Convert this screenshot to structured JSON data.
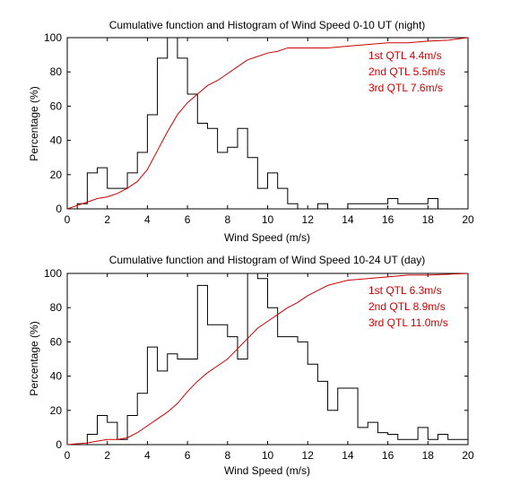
{
  "chart_data": [
    {
      "type": "line",
      "title": "Cumulative function and Histogram of Wind Speed 0-10 UT (night)",
      "xlabel": "Wind Speed (m/s)",
      "ylabel": "Percentage (%)",
      "xlim": [
        0,
        20
      ],
      "ylim": [
        0,
        100
      ],
      "xticks": [
        "0",
        "2",
        "4",
        "6",
        "8",
        "10",
        "12",
        "14",
        "16",
        "18",
        "20"
      ],
      "yticks": [
        "0",
        "20",
        "40",
        "60",
        "80",
        "100"
      ],
      "grid": false,
      "colors": {
        "histogram": "#000000",
        "cumulative": "#cc0000",
        "annotation": "#cc0000"
      },
      "annotations": [
        "1st QTL 4.4m/s",
        "2nd QTL 5.5m/s",
        "3rd QTL 7.6m/s"
      ],
      "series": [
        {
          "style": "histogram-step",
          "x": [
            0,
            0.5,
            1,
            1.5,
            2,
            2.5,
            3,
            3.5,
            4,
            4.5,
            5,
            5.5,
            6,
            6.5,
            7,
            7.5,
            8,
            8.5,
            9,
            9.5,
            10,
            10.5,
            11,
            11.5,
            12,
            12.5,
            13,
            13.5,
            14,
            14.5,
            15,
            15.5,
            16,
            16.5,
            17,
            17.5,
            18,
            18.5,
            19,
            19.5
          ],
          "values": [
            0,
            3,
            21,
            24,
            12,
            12,
            21,
            33,
            55,
            88,
            100,
            88,
            67,
            50,
            47,
            33,
            36,
            47,
            30,
            12,
            21,
            12,
            3,
            0,
            0,
            3,
            0,
            0,
            3,
            3,
            3,
            3,
            6,
            3,
            3,
            3,
            6,
            0,
            0,
            0
          ]
        },
        {
          "style": "cumulative-line",
          "x": [
            0,
            0.5,
            1,
            1.5,
            2,
            2.5,
            3,
            3.5,
            4,
            4.5,
            5,
            5.5,
            6,
            6.5,
            7,
            7.5,
            8,
            8.5,
            9,
            9.5,
            10,
            10.5,
            11,
            12,
            13,
            14,
            15,
            16,
            17,
            18,
            19,
            20
          ],
          "values": [
            0,
            2,
            4,
            6,
            7,
            9,
            12,
            16,
            23,
            34,
            45,
            55,
            62,
            67,
            72,
            75,
            79,
            83,
            87,
            89,
            91,
            92,
            94,
            94,
            94,
            95,
            96,
            97,
            97,
            98,
            98.5,
            100
          ]
        }
      ]
    },
    {
      "type": "line",
      "title": "Cumulative function and Histogram of Wind Speed 10-24 UT (day)",
      "xlabel": "Wind Speed (m/s)",
      "ylabel": "Percentage (%)",
      "xlim": [
        0,
        20
      ],
      "ylim": [
        0,
        100
      ],
      "xticks": [
        "0",
        "2",
        "4",
        "6",
        "8",
        "10",
        "12",
        "14",
        "16",
        "18",
        "20"
      ],
      "yticks": [
        "0",
        "20",
        "40",
        "60",
        "80",
        "100"
      ],
      "grid": false,
      "colors": {
        "histogram": "#000000",
        "cumulative": "#cc0000",
        "annotation": "#cc0000"
      },
      "annotations": [
        "1st QTL 6.3m/s",
        "2nd QTL 8.9m/s",
        "3rd QTL 11.0m/s"
      ],
      "series": [
        {
          "style": "histogram-step",
          "x": [
            1,
            1.5,
            2,
            2.5,
            3,
            3.5,
            4,
            4.5,
            5,
            5.5,
            6,
            6.5,
            7,
            7.5,
            8,
            8.5,
            9,
            9.5,
            10,
            10.5,
            11,
            11.5,
            12,
            12.5,
            13,
            13.5,
            14,
            14.5,
            15,
            15.5,
            16,
            16.5,
            17,
            17.5,
            18,
            18.5,
            19,
            19.5
          ],
          "values": [
            6,
            17,
            13,
            3,
            17,
            30,
            57,
            43,
            53,
            50,
            50,
            93,
            70,
            70,
            63,
            50,
            100,
            97,
            80,
            63,
            63,
            60,
            47,
            37,
            20,
            33,
            33,
            10,
            13,
            7,
            6,
            3,
            3,
            10,
            3,
            6,
            3,
            3
          ]
        },
        {
          "style": "cumulative-line",
          "x": [
            0,
            0.5,
            1,
            1.5,
            2,
            2.5,
            3,
            3.5,
            4,
            4.5,
            5,
            5.5,
            6,
            6.5,
            7,
            7.5,
            8,
            8.5,
            9,
            9.5,
            10,
            10.5,
            11,
            11.5,
            12,
            12.5,
            13,
            14,
            15,
            16,
            17,
            18,
            19,
            20
          ],
          "values": [
            0,
            0.5,
            1,
            2,
            3,
            3,
            4,
            7,
            11,
            15,
            19,
            24,
            31,
            37,
            42,
            46,
            50,
            56,
            62,
            68,
            72,
            76,
            80,
            83,
            87,
            90,
            93,
            96,
            97,
            98,
            99,
            99,
            99.5,
            100
          ]
        }
      ]
    }
  ]
}
